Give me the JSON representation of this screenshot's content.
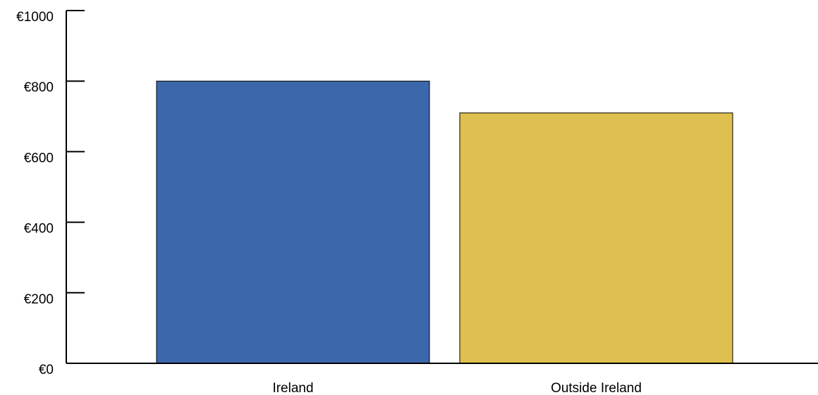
{
  "chart_data": {
    "type": "bar",
    "title": "",
    "xlabel": "",
    "ylabel": "",
    "categories": [
      "Ireland",
      "Outside Ireland"
    ],
    "values": [
      800,
      710
    ],
    "colors": [
      "#3d67ab",
      "#debf4f"
    ],
    "ylim": [
      0,
      1000
    ],
    "yticks": [
      0,
      200,
      400,
      600,
      800,
      1000
    ],
    "ytick_labels": [
      "€0",
      "€200",
      "€400",
      "€600",
      "€800",
      "€1000"
    ],
    "grid": false,
    "legend": "none"
  }
}
